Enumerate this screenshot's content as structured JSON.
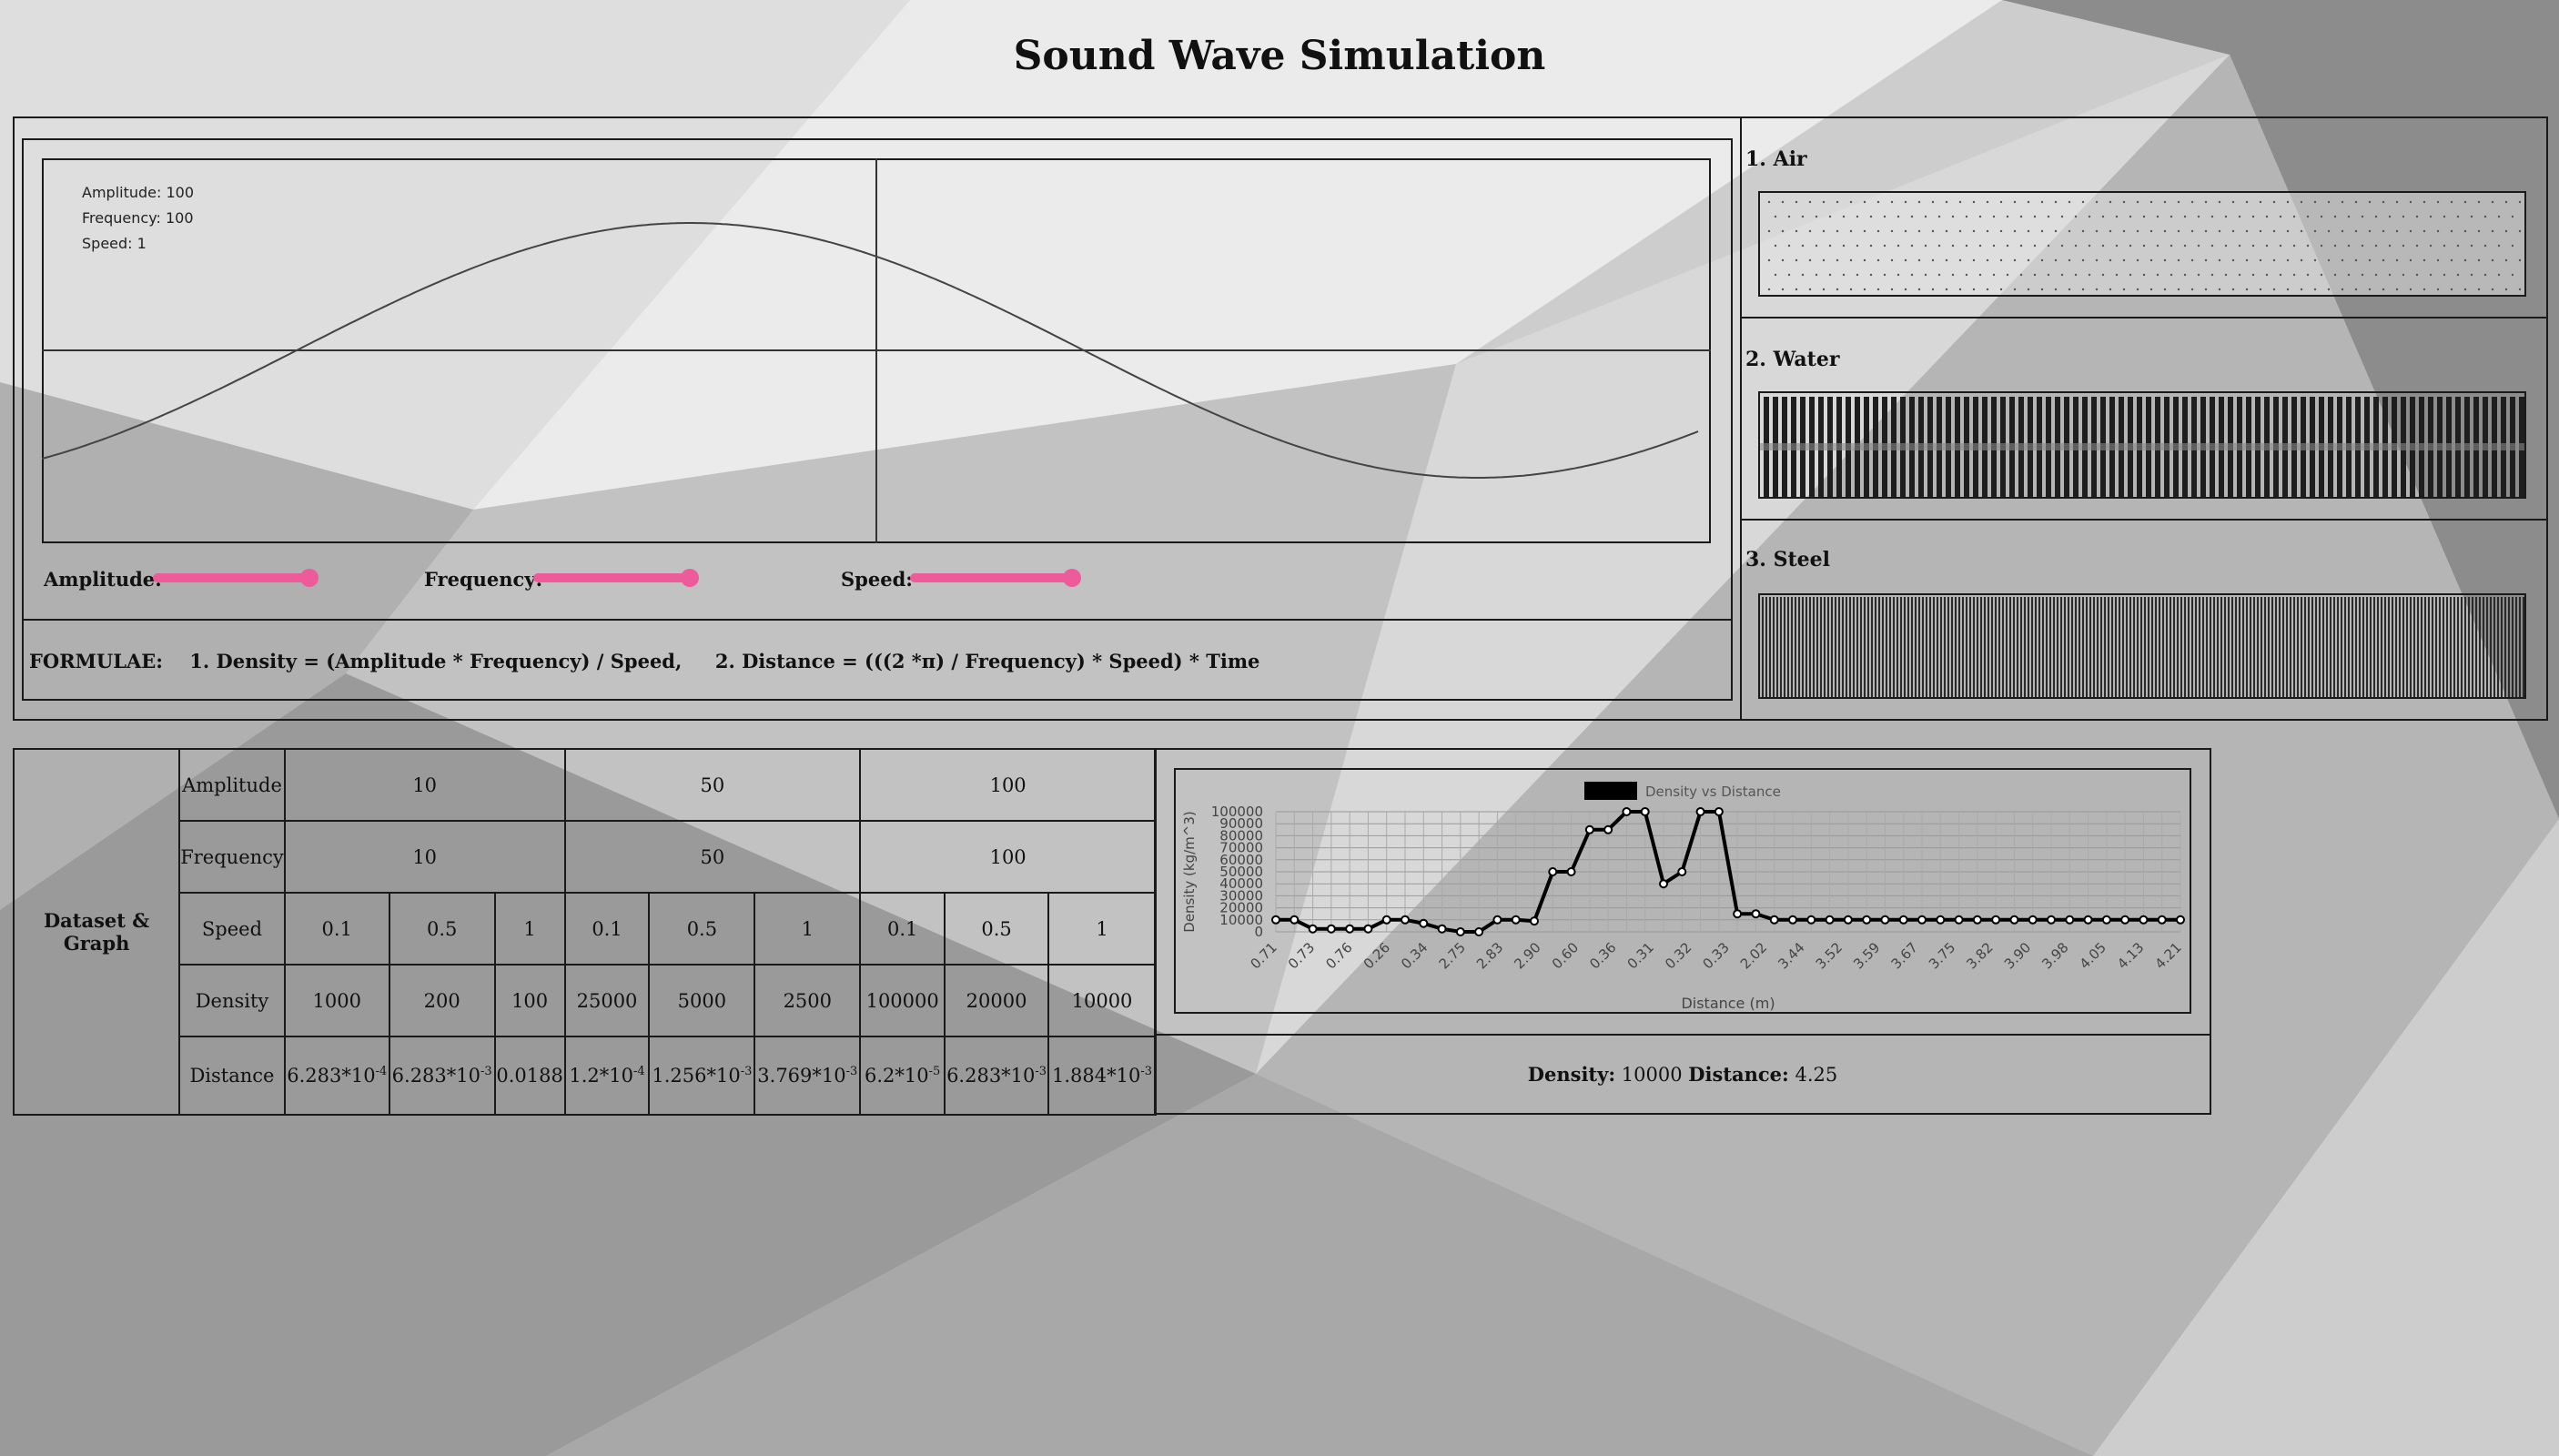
{
  "title": "Sound Wave Simulation",
  "wave_info": {
    "amplitude": "Amplitude: 100",
    "frequency": "Frequency: 100",
    "speed": "Speed: 1"
  },
  "sliders": {
    "amplitude_label": "Amplitude:",
    "frequency_label": "Frequency:",
    "speed_label": "Speed:",
    "amplitude_value": 1.0,
    "frequency_value": 1.0,
    "speed_value": 1.0,
    "color": "#ee5b9b"
  },
  "formulae": "FORMULAE:    1. Density = (Amplitude * Frequency) / Speed,     2. Distance = (((2 *π) / Frequency) * Speed) * Time",
  "media": [
    {
      "label": "1. Air"
    },
    {
      "label": "2. Water"
    },
    {
      "label": "3. Steel"
    }
  ],
  "dataset": {
    "side_label": "Dataset & Graph",
    "row_labels": [
      "Amplitude",
      "Frequency",
      "Speed",
      "Density",
      "Distance"
    ],
    "amplitudes": [
      "10",
      "50",
      "100"
    ],
    "frequencies": [
      "10",
      "50",
      "100"
    ],
    "speeds": [
      "0.1",
      "0.5",
      "1",
      "0.1",
      "0.5",
      "1",
      "0.1",
      "0.5",
      "1"
    ],
    "densities": [
      "1000",
      "200",
      "100",
      "25000",
      "5000",
      "2500",
      "100000",
      "20000",
      "10000"
    ],
    "distances": [
      {
        "base": "6.283*10",
        "exp": "-4"
      },
      {
        "base": "6.283*10",
        "exp": "-3"
      },
      {
        "base": "0.0188",
        "exp": ""
      },
      {
        "base": "1.2*10",
        "exp": "-4"
      },
      {
        "base": "1.256*10",
        "exp": "-3"
      },
      {
        "base": "3.769*10",
        "exp": "-3"
      },
      {
        "base": "6.2*10",
        "exp": "-5"
      },
      {
        "base": "6.283*10",
        "exp": "-3"
      },
      {
        "base": "1.884*10",
        "exp": "-3"
      }
    ]
  },
  "result": {
    "density_label": "Density:",
    "density_value": "10000",
    "distance_label": "Distance:",
    "distance_value": "4.25"
  },
  "chart_data": {
    "type": "line",
    "title": "Density vs Distance",
    "legend": "Density vs Distance",
    "xlabel": "Distance (m)",
    "ylabel": "Density (kg/m^3)",
    "ylim": [
      0,
      100000
    ],
    "yticks": [
      0,
      10000,
      20000,
      30000,
      40000,
      50000,
      60000,
      70000,
      80000,
      90000,
      100000
    ],
    "xtick_labels": [
      "0.71",
      "0.73",
      "0.76",
      "0.26",
      "0.34",
      "2.75",
      "2.83",
      "2.90",
      "0.60",
      "0.36",
      "0.31",
      "0.32",
      "0.33",
      "2.02",
      "3.44",
      "3.52",
      "3.59",
      "3.67",
      "3.75",
      "3.82",
      "3.90",
      "3.98",
      "4.05",
      "4.13",
      "4.21"
    ],
    "values": [
      10000,
      10000,
      2500,
      2500,
      2500,
      2500,
      10000,
      10000,
      7000,
      2500,
      0,
      0,
      10000,
      10000,
      9000,
      50000,
      50000,
      85000,
      85000,
      100000,
      100000,
      40000,
      50000,
      100000,
      100000,
      15000,
      15000,
      10000,
      10000,
      10000,
      10000,
      10000,
      10000,
      10000,
      10000,
      10000,
      10000,
      10000,
      10000,
      10000,
      10000,
      10000,
      10000,
      10000,
      10000,
      10000,
      10000,
      10000,
      10000,
      10000
    ],
    "grid": true,
    "line_color": "#000000"
  }
}
